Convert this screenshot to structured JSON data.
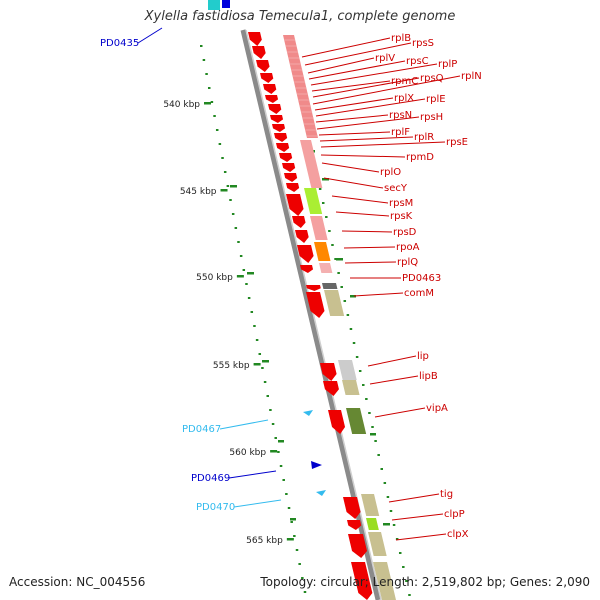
{
  "header": {
    "title": "Xylella fastidiosa Temecula1, complete genome"
  },
  "footer": {
    "accession": "Accession: NC_004556",
    "summary": "Topology: circular; Length: 2,519,802 bp; Genes: 2,090"
  },
  "scale": {
    "ticks": [
      "540 kbp",
      "545 kbp",
      "550 kbp",
      "555 kbp",
      "560 kbp",
      "565 kbp"
    ]
  },
  "features": {
    "left_labels": [
      {
        "name": "PD0435",
        "color": "#0000cc"
      },
      {
        "name": "PD0467",
        "color": "#33bbee"
      },
      {
        "name": "PD0469",
        "color": "#0000cc"
      },
      {
        "name": "PD0470",
        "color": "#33bbee"
      }
    ],
    "right_labels": [
      "rplB",
      "rpsS",
      "rplV",
      "rpsC",
      "rplP",
      "rpmC",
      "rpsQ",
      "rplN",
      "rplX",
      "rplE",
      "rpsN",
      "rpsH",
      "rplF",
      "rplR",
      "rpsE",
      "rpmD",
      "rplO",
      "secY",
      "rpsM",
      "rpsK",
      "rpsD",
      "rpoA",
      "rplQ",
      "PD0463",
      "comM",
      "lip",
      "lipB",
      "vipA",
      "tig",
      "clpP",
      "clpX"
    ],
    "label_color": "#cc0000"
  },
  "colors": {
    "backbone": "#8a8a8a",
    "gene_arrow": "#ee0000",
    "ribosomal_box": "#f08a8a",
    "secY_box": "#aaee33",
    "rpoA_box": "#ff8800",
    "olive_box": "#c8c090",
    "vipA_box": "#668833",
    "clpP_box": "#99dd22",
    "gc_dots": "#228822"
  }
}
